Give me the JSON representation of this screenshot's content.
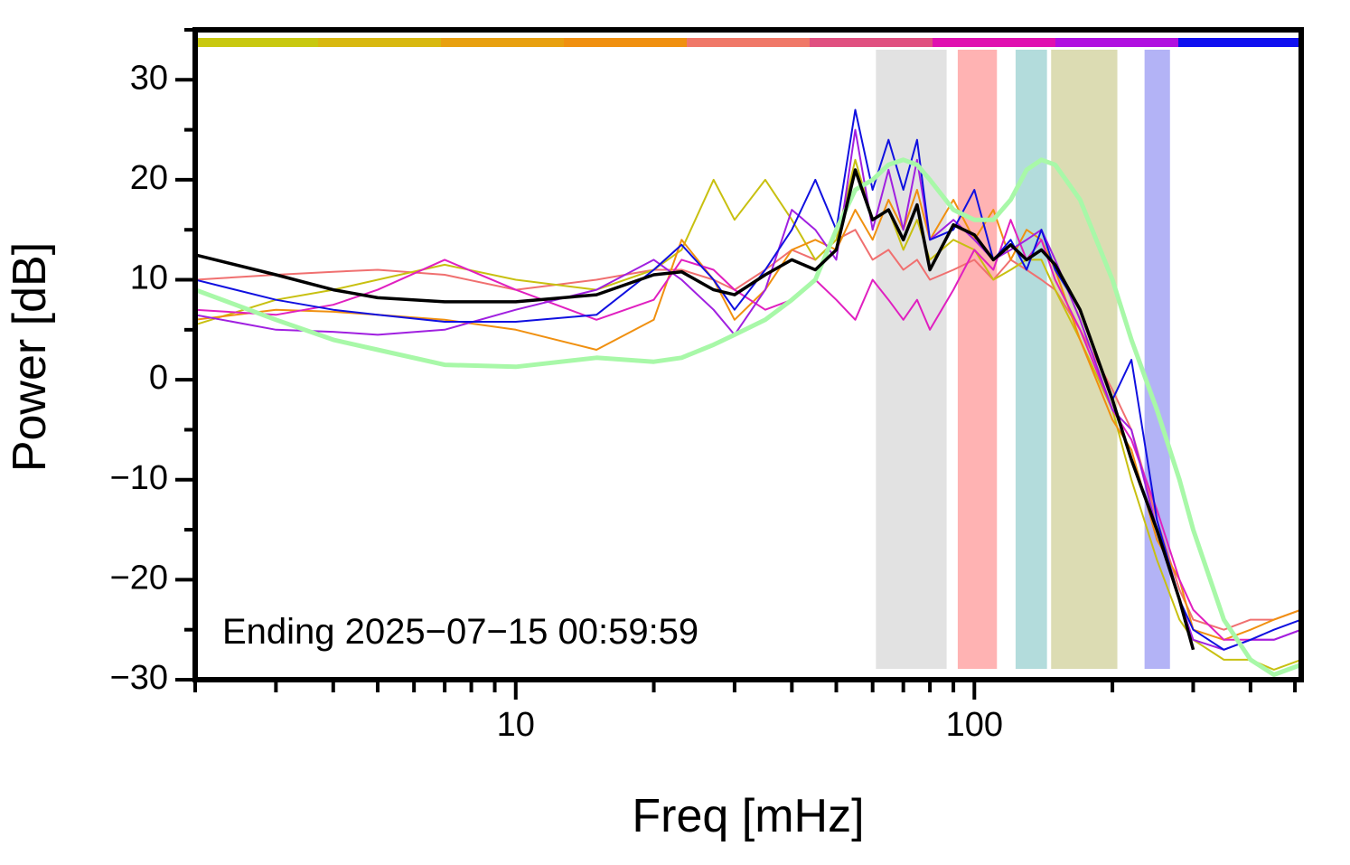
{
  "chart_data": {
    "type": "line",
    "xlabel": "Freq [mHz]",
    "ylabel": "Power [dB]",
    "annotation": "Ending 2025−07−15 00:59:59",
    "xscale": "log",
    "xlim": [
      2,
      516
    ],
    "ylim": [
      -30,
      35
    ],
    "xticks": [
      10,
      100
    ],
    "xminor_ticks": [
      2,
      3,
      4,
      5,
      6,
      7,
      8,
      9,
      20,
      30,
      40,
      50,
      60,
      70,
      80,
      90,
      200,
      300,
      400,
      500
    ],
    "yticks": [
      {
        "value": -30,
        "label": "−30"
      },
      {
        "value": -20,
        "label": "−20"
      },
      {
        "value": -10,
        "label": "−10"
      },
      0,
      10,
      20,
      30
    ],
    "yminor_ticks": [
      -25,
      -15,
      -5,
      5,
      15,
      25,
      35
    ],
    "top_bar": [
      "#c8c810",
      "#d8b810",
      "#e8a010",
      "#f09010",
      "#f07868",
      "#e05080",
      "#e010b0",
      "#b010e0",
      "#1010f0"
    ],
    "bands": [
      {
        "x": [
          61,
          87
        ],
        "color": "#e2e2e2"
      },
      {
        "x": [
          92,
          112
        ],
        "color": "#ffb3b3"
      },
      {
        "x": [
          123,
          144
        ],
        "color": "#b3dcdc"
      },
      {
        "x": [
          147,
          205
        ],
        "color": "#dcdcb3"
      },
      {
        "x": [
          235,
          267
        ],
        "color": "#b3b3f6"
      }
    ],
    "x": [
      2,
      3,
      4,
      5,
      7,
      10,
      15,
      20,
      23,
      27,
      30,
      35,
      40,
      45,
      50,
      55,
      60,
      65,
      70,
      75,
      80,
      90,
      100,
      110,
      120,
      130,
      140,
      150,
      170,
      200,
      220,
      250,
      280,
      300,
      350,
      400,
      450,
      516
    ],
    "series": [
      {
        "color": "#f07070",
        "width": 2,
        "values": [
          10,
          10.5,
          10.8,
          11,
          10.5,
          9,
          10,
          11,
          11,
          10,
          9,
          11,
          13,
          12,
          14,
          15,
          12,
          13,
          11,
          12,
          10,
          11,
          12,
          10,
          12,
          11,
          10,
          9,
          5,
          -1,
          -5,
          -14,
          -21,
          -24,
          -25,
          -24,
          -24,
          -23
        ]
      },
      {
        "color": "#c8c010",
        "width": 2,
        "values": [
          5.5,
          8,
          9,
          10,
          11.5,
          10,
          9,
          11,
          13,
          20,
          16,
          20,
          16,
          12,
          14,
          22,
          16,
          17,
          13,
          16,
          12,
          14,
          13,
          10,
          11,
          12,
          12,
          9,
          4,
          -3,
          -10,
          -18,
          -24,
          -26,
          -28,
          -28,
          -29,
          -28
        ]
      },
      {
        "color": "#f09010",
        "width": 2,
        "values": [
          6,
          7,
          6.8,
          6.5,
          6,
          5,
          3,
          6,
          14,
          10,
          6,
          9,
          13,
          14,
          13,
          17,
          14,
          18,
          15,
          19,
          14,
          18,
          14,
          17,
          12,
          15,
          14,
          11,
          4,
          -4,
          -7,
          -16,
          -20,
          -25,
          -26,
          -25,
          -24,
          -23
        ]
      },
      {
        "color": "#e020c0",
        "width": 2,
        "values": [
          7,
          6.5,
          7.5,
          9,
          12,
          9,
          6,
          8,
          12,
          11,
          9,
          7,
          8,
          10,
          8,
          6,
          10,
          8,
          6,
          8,
          5,
          9,
          13,
          11,
          16,
          12,
          14,
          10,
          5,
          -3,
          -6,
          -13,
          -20,
          -23,
          -26,
          -26,
          -26,
          -25
        ]
      },
      {
        "color": "#a020e0",
        "width": 2,
        "values": [
          6.5,
          5,
          4.8,
          4.5,
          5,
          7,
          9,
          12,
          10,
          7,
          4.5,
          9,
          17,
          15,
          12,
          25,
          15,
          21,
          15,
          22,
          14,
          16,
          14,
          12,
          13,
          14,
          15,
          12,
          6,
          -3,
          -5,
          -15,
          -22,
          -26,
          -27,
          -26,
          -26,
          -25
        ]
      },
      {
        "color": "#1010e0",
        "width": 2,
        "values": [
          10,
          8,
          7,
          6.5,
          5.8,
          5.8,
          6.5,
          11,
          13.5,
          10,
          7,
          11,
          15,
          20,
          15,
          27,
          19,
          24,
          19,
          24,
          14,
          15,
          19,
          12,
          14,
          11,
          15,
          11,
          7,
          -2,
          2,
          -14,
          -22,
          -25,
          -27,
          -26,
          -25,
          -24
        ]
      },
      {
        "color": "#a8f8a8",
        "width": 5,
        "values": [
          9,
          6,
          4,
          3,
          1.5,
          1.3,
          2.2,
          1.8,
          2.2,
          3.5,
          4.5,
          6,
          8,
          10,
          15,
          19,
          20,
          21.5,
          22,
          21.5,
          20,
          17,
          16,
          16,
          18,
          21,
          22,
          21.5,
          18,
          10,
          4,
          -3,
          -10,
          -15,
          -24,
          -28,
          -29.5,
          -28.5
        ]
      },
      {
        "color": "#000000",
        "width": 3.5,
        "values": [
          12.5,
          10.5,
          9,
          8.2,
          7.8,
          7.8,
          8.5,
          10.5,
          10.8,
          9,
          8.5,
          10.5,
          12,
          11,
          13,
          21,
          16,
          17,
          14,
          17.5,
          11,
          15.5,
          14.5,
          12,
          13.5,
          12,
          13,
          11.5,
          7,
          -2,
          -8,
          -15,
          -22,
          -27,
          null,
          null,
          null,
          null
        ]
      }
    ]
  }
}
